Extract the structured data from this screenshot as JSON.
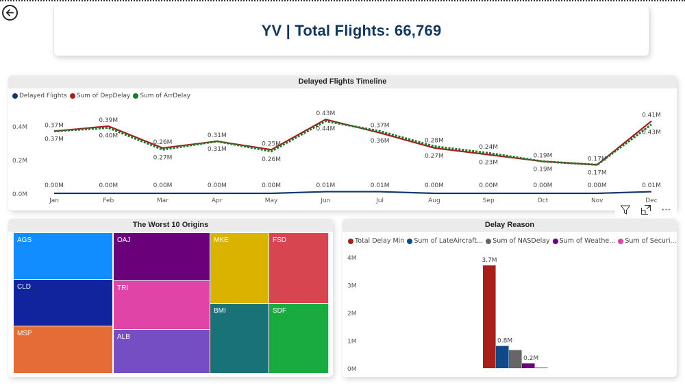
{
  "header": {
    "title": "YV | Total Flights: 66,769",
    "title_color": "#12375F"
  },
  "nav": {
    "back_icon": "arrow-left-circle-icon"
  },
  "visual_toolbar": {
    "filter_icon": "filter-icon",
    "focus_icon": "focus-mode-icon",
    "more_icon": "more-options-icon",
    "more_label": "⋯"
  },
  "timeline": {
    "title": "Delayed Flights Timeline",
    "legend": [
      {
        "label": "Delayed Flights",
        "color": "#12376B"
      },
      {
        "label": "Sum of DepDelay",
        "color": "#A8201A"
      },
      {
        "label": "Sum of ArrDelay",
        "color": "#1A7A2E"
      }
    ]
  },
  "treemap": {
    "title": "The Worst 10 Origins",
    "tiles": [
      {
        "label": "AGS",
        "color": "#118DFF"
      },
      {
        "label": "CLD",
        "color": "#12239E"
      },
      {
        "label": "MSP",
        "color": "#E66C37"
      },
      {
        "label": "OAJ",
        "color": "#6B007B"
      },
      {
        "label": "TRI",
        "color": "#E044A7"
      },
      {
        "label": "ALB",
        "color": "#744EC2"
      },
      {
        "label": "MKE",
        "color": "#D9B300"
      },
      {
        "label": "FSD",
        "color": "#D64550"
      },
      {
        "label": "BMI",
        "color": "#197278"
      },
      {
        "label": "SDF",
        "color": "#1AAB40"
      }
    ]
  },
  "delay_reason": {
    "title": "Delay Reason",
    "legend": [
      {
        "label": "Total Delay Min",
        "color": "#A8201A"
      },
      {
        "label": "Sum of LateAircraft...",
        "color": "#0E4A8A"
      },
      {
        "label": "Sum of NASDelay",
        "color": "#666666"
      },
      {
        "label": "Sum of Weathe...",
        "color": "#6B007B"
      },
      {
        "label": "Sum of Securi...",
        "color": "#E044A7"
      }
    ]
  },
  "chart_data": [
    {
      "type": "line",
      "title": "Delayed Flights Timeline",
      "xlabel": "",
      "ylabel": "",
      "x": [
        "Jan",
        "Feb",
        "Mar",
        "Apr",
        "May",
        "Jun",
        "Jul",
        "Aug",
        "Sep",
        "Oct",
        "Nov",
        "Dec"
      ],
      "y_ticks": [
        "0.0M",
        "0.2M",
        "0.4M"
      ],
      "ylim": [
        0,
        0.5
      ],
      "legend_position": "top-left",
      "series": [
        {
          "name": "Delayed Flights",
          "color": "#12376B",
          "style": "solid",
          "values": [
            0.0,
            0.0,
            0.0,
            0.0,
            0.0,
            0.01,
            0.01,
            0.0,
            0.0,
            0.0,
            0.0,
            0.01
          ],
          "labels": [
            "0.00M",
            "0.00M",
            "0.00M",
            "0.00M",
            "0.00M",
            "0.01M",
            "0.01M",
            "0.00M",
            "0.00M",
            "0.00M",
            "0.00M",
            "0.01M"
          ]
        },
        {
          "name": "Sum of DepDelay",
          "color": "#A8201A",
          "style": "solid",
          "values": [
            0.37,
            0.4,
            0.27,
            0.31,
            0.26,
            0.44,
            0.36,
            0.27,
            0.23,
            0.19,
            0.17,
            0.43
          ],
          "labels": [
            "0.37M",
            "0.40M",
            "0.27M",
            "0.31M",
            "0.26M",
            "0.44M",
            "0.36M",
            "0.27M",
            "0.23M",
            "0.19M",
            "0.17M",
            "0.43M"
          ]
        },
        {
          "name": "Sum of ArrDelay",
          "color": "#1A7A2E",
          "style": "dotted",
          "values": [
            0.37,
            0.39,
            0.26,
            0.31,
            0.25,
            0.43,
            0.37,
            0.28,
            0.24,
            0.19,
            0.17,
            0.41
          ],
          "labels": [
            "0.37M",
            "0.39M",
            "0.26M",
            "0.31M",
            "0.25M",
            "0.43M",
            "0.37M",
            "0.28M",
            "0.24M",
            "0.19M",
            "0.17M",
            "0.41M"
          ]
        }
      ]
    },
    {
      "type": "bar",
      "title": "Delay Reason",
      "xlabel": "",
      "ylabel": "",
      "y_ticks": [
        "0M",
        "1M",
        "2M",
        "3M",
        "4M"
      ],
      "ylim": [
        0,
        4
      ],
      "legend_position": "top-left",
      "series": [
        {
          "name": "Total Delay Min",
          "color": "#A8201A",
          "value": 3.7,
          "label": "3.7M"
        },
        {
          "name": "Sum of LateAircraft...",
          "color": "#0E4A8A",
          "value": 0.8,
          "label": "0.8M"
        },
        {
          "name": "Sum of NASDelay",
          "color": "#666666",
          "value": 0.65,
          "label": ""
        },
        {
          "name": "Sum of Weathe...",
          "color": "#6B007B",
          "value": 0.17,
          "label": "0.2M"
        },
        {
          "name": "Sum of Securi...",
          "color": "#E044A7",
          "value": 0.01,
          "label": ""
        }
      ]
    },
    {
      "type": "treemap",
      "title": "The Worst 10 Origins",
      "categories": [
        "AGS",
        "CLD",
        "MSP",
        "OAJ",
        "TRI",
        "ALB",
        "MKE",
        "FSD",
        "BMI",
        "SDF"
      ]
    }
  ]
}
